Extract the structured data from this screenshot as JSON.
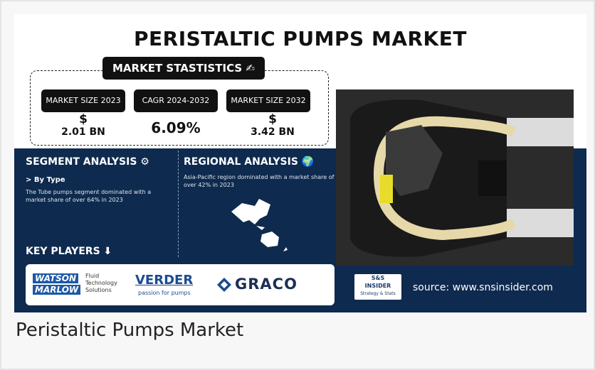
{
  "infographic": {
    "title": "PERISTALTIC PUMPS MARKET",
    "stats": {
      "heading": "MARKET STASTISTICS",
      "items": [
        {
          "label": "MARKET SIZE 2023",
          "symbol": "$",
          "value": "2.01 BN"
        },
        {
          "label": "CAGR 2024-2032",
          "value": "6.09%"
        },
        {
          "label": "MARKET SIZE 2032",
          "symbol": "$",
          "value": "3.42 BN"
        }
      ]
    },
    "segment": {
      "heading": "SEGMENT ANALYSIS",
      "subheading": "> By Type",
      "text": "The Tube pumps segment dominated with a market share of over 64% in 2023"
    },
    "regional": {
      "heading": "REGIONAL ANALYSIS",
      "text": "Asia-Pacific region dominated with a market share of over 42% in 2023"
    },
    "key_players": {
      "heading": "KEY PLAYERS",
      "logos": {
        "watson": "WATSON",
        "marlow": "MARLOW",
        "fluid": "Fluid",
        "technology": "Technology",
        "solutions": "Solutions",
        "verder": "VERDER",
        "verder_tagline": "passion for pumps",
        "graco": "GRACO"
      }
    },
    "brand": {
      "top": "S&S",
      "middle": "INSIDER",
      "bottom": "Strategy & Stats"
    },
    "source": "source: www.snsinsider.com"
  },
  "caption": "Peristaltic Pumps Market"
}
